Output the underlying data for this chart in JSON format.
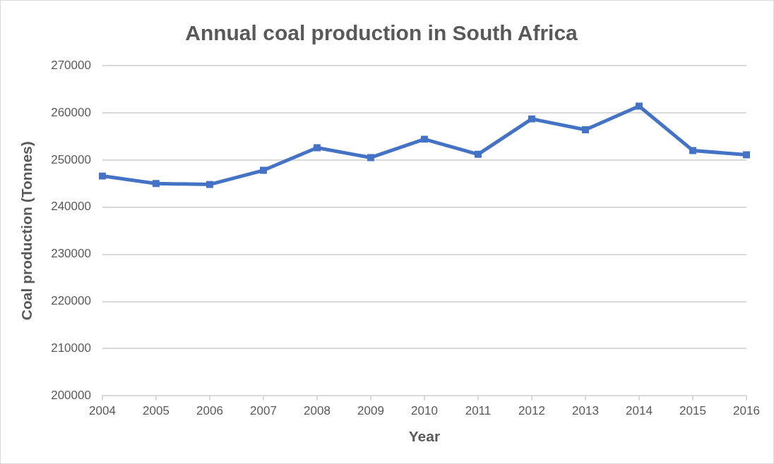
{
  "chart_data": {
    "type": "line",
    "title": "Annual coal production in South Africa",
    "xlabel": "Year",
    "ylabel": "Coal production (Tonnes)",
    "categories": [
      "2004",
      "2005",
      "2006",
      "2007",
      "2008",
      "2009",
      "2010",
      "2011",
      "2012",
      "2013",
      "2014",
      "2015",
      "2016"
    ],
    "series": [
      {
        "color": "#4472c4",
        "values": [
          246600,
          245000,
          244800,
          247800,
          252600,
          250500,
          254400,
          251200,
          258700,
          256400,
          261400,
          252000,
          251100
        ]
      }
    ],
    "ylim": [
      200000,
      270000
    ],
    "yticks": [
      200000,
      210000,
      220000,
      230000,
      240000,
      250000,
      260000,
      270000
    ],
    "grid": "y",
    "legend": false,
    "marker": "square",
    "line_style": "solid"
  }
}
